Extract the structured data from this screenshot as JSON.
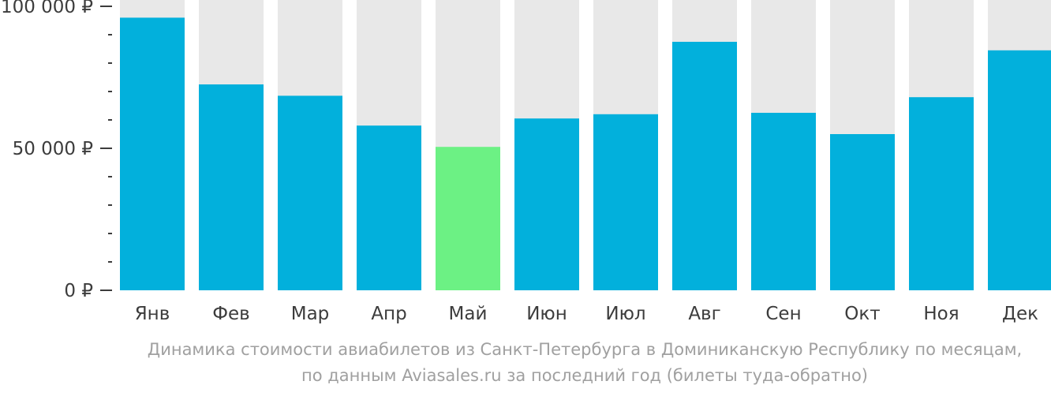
{
  "chart_data": {
    "type": "bar",
    "categories": [
      "Янв",
      "Фев",
      "Мар",
      "Апр",
      "Май",
      "Июн",
      "Июл",
      "Авг",
      "Сен",
      "Окт",
      "Ноя",
      "Дек"
    ],
    "values": [
      96000,
      72500,
      68500,
      58000,
      50500,
      60500,
      62000,
      87500,
      62500,
      55000,
      68000,
      84500
    ],
    "highlight_index": 4,
    "ylim": [
      0,
      100000
    ],
    "y_ticks": [
      {
        "value": 0,
        "label": "0 ₽"
      },
      {
        "value": 50000,
        "label": "50 000 ₽"
      },
      {
        "value": 100000,
        "label": "100 000 ₽"
      }
    ],
    "minor_tick_step": 10000,
    "grid": false,
    "colors": {
      "bar": "#02b0dc",
      "highlight": "#6cf184",
      "track": "#e8e8e8",
      "text": "#3c3c3c",
      "caption": "#a0a0a0"
    }
  },
  "caption": {
    "line1": "Динамика стоимости авиабилетов из Санкт-Петербурга в Доминиканскую Республику по месяцам,",
    "line2": "по данным Aviasales.ru за последний год (билеты туда-обратно)"
  }
}
